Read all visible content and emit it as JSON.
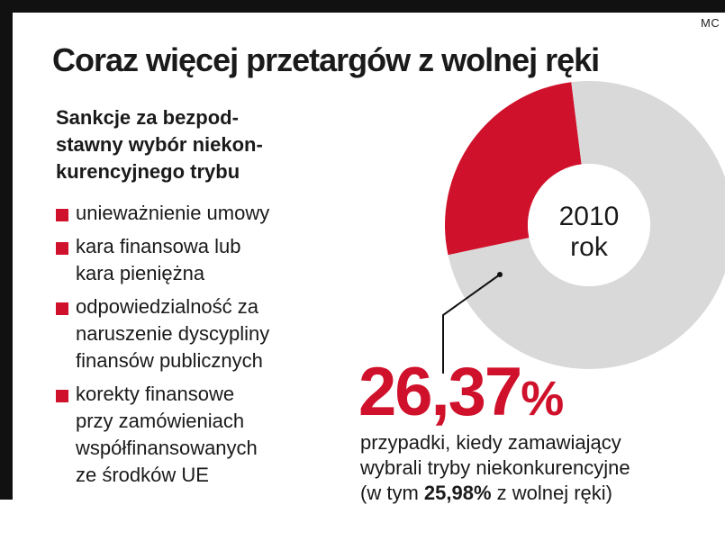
{
  "credit": "MC",
  "title": "Coraz więcej przetargów z wolnej ręki",
  "subtitle_lines": [
    "Sankcje za bezpod-",
    "stawny wybór niekon-",
    "kurencyjnego trybu"
  ],
  "sanctions": [
    {
      "lines": [
        "unieważnienie umowy"
      ]
    },
    {
      "lines": [
        "kara finansowa lub",
        "kara pieniężna"
      ]
    },
    {
      "lines": [
        "odpowiedzialność za",
        "naruszenie dyscypliny",
        "finansów publicznych"
      ]
    },
    {
      "lines": [
        "korekty finansowe",
        "przy  zamówieniach",
        "współfinansowanych",
        "ze środków UE"
      ]
    }
  ],
  "highlight": {
    "value": "26,37",
    "unit": "%",
    "desc_line1": "przypadki, kiedy zamawiający",
    "desc_line2": "wybrali tryby niekonkurencyjne",
    "desc_line3_prefix": "(w tym ",
    "desc_line3_bold": "25,98%",
    "desc_line3_suffix": " z wolnej ręki)"
  },
  "colors": {
    "accent": "#d0112b",
    "rest": "#d9d9d9",
    "text": "#1a1a1a"
  },
  "chart_data": {
    "type": "pie",
    "style": "donut",
    "center_label": [
      "2010",
      "rok"
    ],
    "slices": [
      {
        "value": 26.37,
        "color": "#d0112b"
      },
      {
        "value": 73.63,
        "color": "#d9d9d9"
      }
    ]
  }
}
